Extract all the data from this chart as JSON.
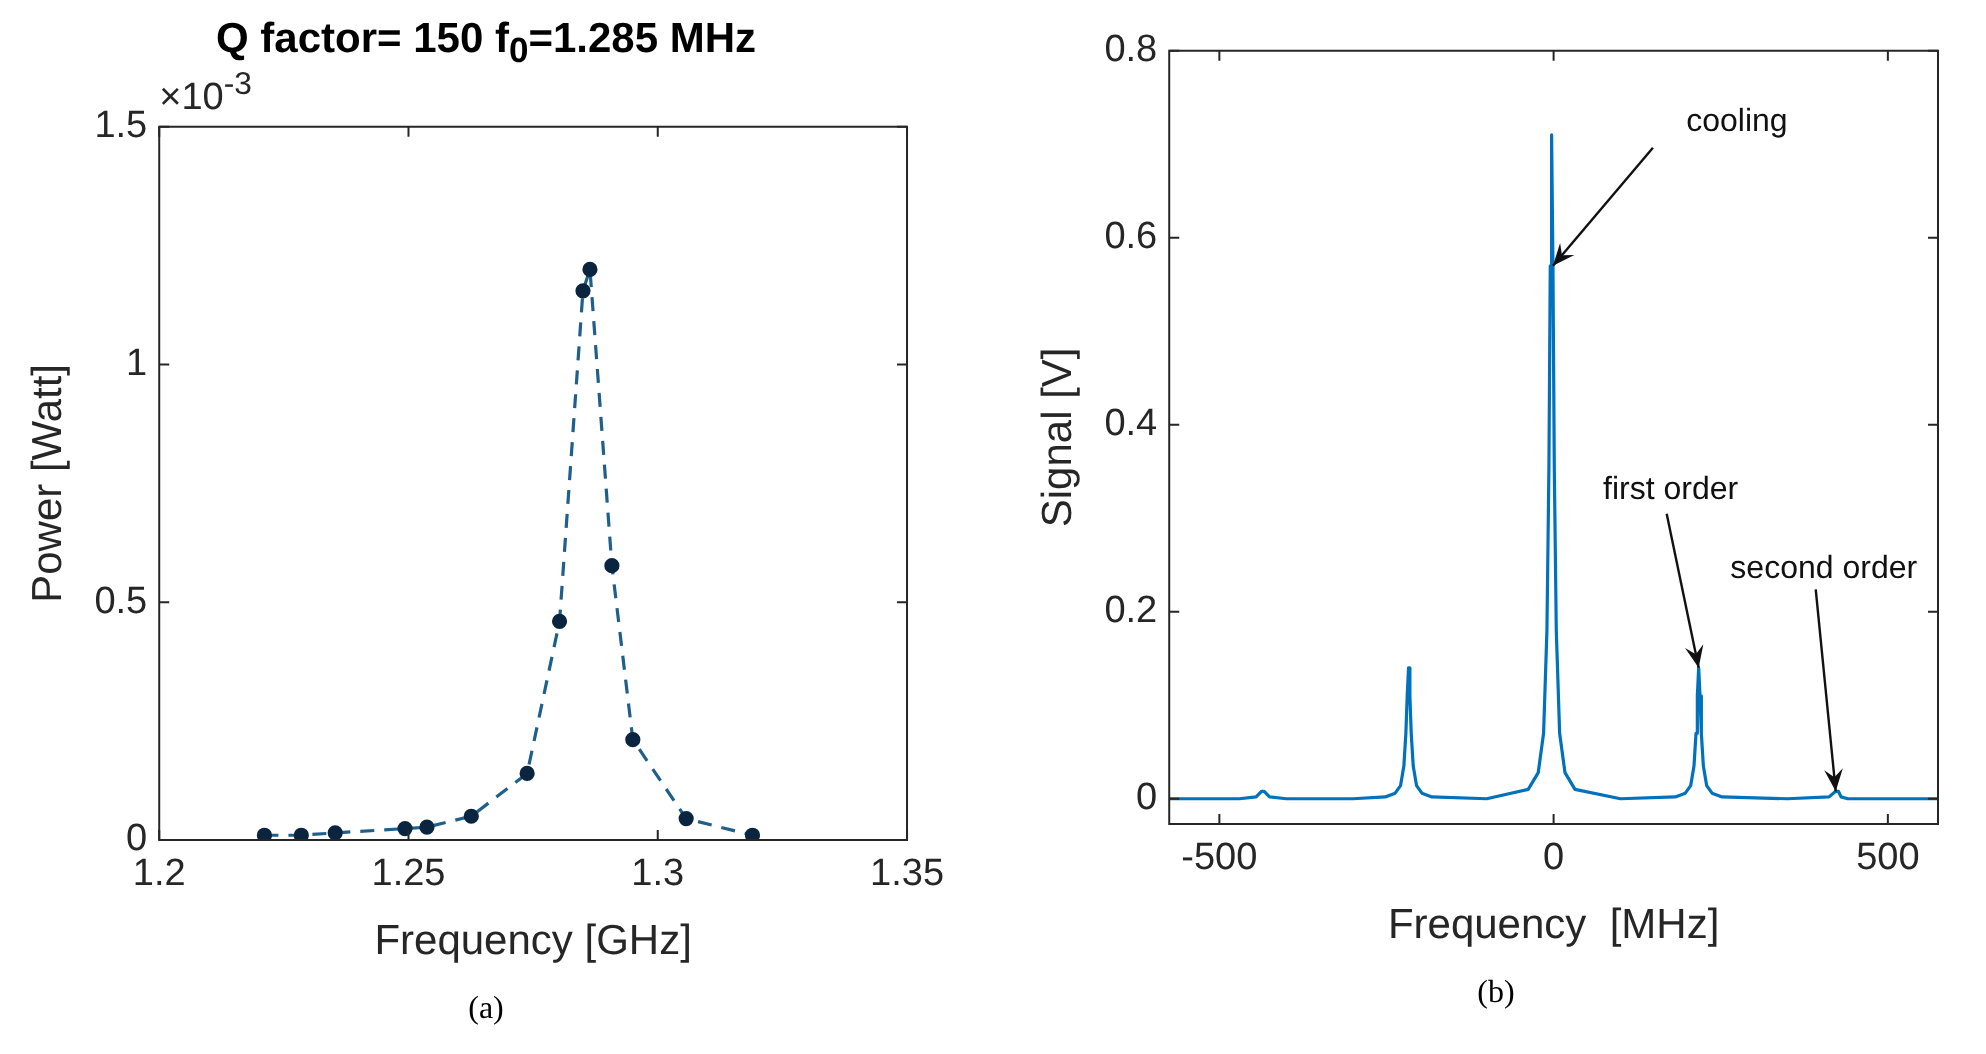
{
  "chart_data": [
    {
      "type": "line",
      "title": "Q factor= 150 f$_{0}$=1.285  MHz",
      "xlabel": "Frequency [GHz]",
      "ylabel": "Power [Watt]",
      "series": [
        {
          "color": "#1f5f8b",
          "x": [
            1.2211,
            1.2285,
            1.2353,
            1.2493,
            1.2537,
            1.2626,
            1.2738,
            1.2803,
            1.285,
            1.2864,
            1.2908,
            1.295,
            1.3057,
            1.319
          ],
          "values": [
            0.01,
            0.01,
            0.015,
            0.024,
            0.027,
            0.05,
            0.14,
            0.46,
            1.155,
            1.2,
            0.577,
            0.211,
            0.045,
            0.01
          ]
        }
      ],
      "xlim": [
        1.2,
        1.35
      ],
      "xticks": [
        1.2,
        1.25,
        1.3,
        1.35
      ],
      "ylim": [
        0,
        1.5
      ],
      "yticks": [
        0,
        0.5,
        1,
        1.5
      ],
      "marker": "circle",
      "line_style": "dashed",
      "grid": false,
      "legend": false,
      "annotations": [
        "×10$^{-3}$",
        "(a)"
      ]
    },
    {
      "type": "line",
      "xlabel": "Frequency  [MHz]",
      "ylabel": "Signal [V]",
      "series": [
        {
          "color": "#0072bd",
          "x": [
            -575,
            -470,
            -445,
            -437,
            -433,
            -425,
            -400,
            -300,
            -252,
            -237,
            -229,
            -224,
            -221,
            -219,
            -217,
            -215,
            -213,
            -210,
            -205,
            -197,
            -182,
            -100,
            -38,
            -23,
            -15,
            -10,
            -7,
            -5,
            -3,
            -1,
            1,
            4,
            9,
            17,
            32,
            100,
            182,
            197,
            205,
            210,
            213,
            215,
            217,
            219,
            221,
            224,
            229,
            237,
            252,
            350,
            412,
            422,
            426,
            430,
            440,
            500,
            575
          ],
          "values": [
            0,
            0,
            0.002,
            0.008,
            0.008,
            0.002,
            0,
            0,
            0.002,
            0.006,
            0.014,
            0.035,
            0.07,
            0.11,
            0.14,
            0.11,
            0.07,
            0.035,
            0.014,
            0.006,
            0.002,
            0,
            0.01,
            0.028,
            0.07,
            0.18,
            0.355,
            0.57,
            0.71,
            0.57,
            0.355,
            0.18,
            0.07,
            0.028,
            0.01,
            0,
            0.002,
            0.006,
            0.014,
            0.035,
            0.07,
            0.11,
            0.14,
            0.11,
            0.07,
            0.035,
            0.014,
            0.006,
            0.002,
            0,
            0.002,
            0.008,
            0.008,
            0.002,
            0,
            0,
            0
          ]
        }
      ],
      "xlim": [
        -575,
        575
      ],
      "xticks": [
        -500,
        0,
        500
      ],
      "ylim": [
        -0.027,
        0.8
      ],
      "yticks": [
        0,
        0.2,
        0.4,
        0.6,
        0.8
      ],
      "marker": "none",
      "line_style": "solid",
      "grid": false,
      "legend": false,
      "annotations": [
        {
          "text": "cooling",
          "x": -1,
          "y": 0.57
        },
        {
          "text": "first order",
          "x": 217,
          "y": 0.14
        },
        {
          "text": "second order",
          "x": 422,
          "y": 0.008
        },
        "(b)"
      ]
    }
  ]
}
